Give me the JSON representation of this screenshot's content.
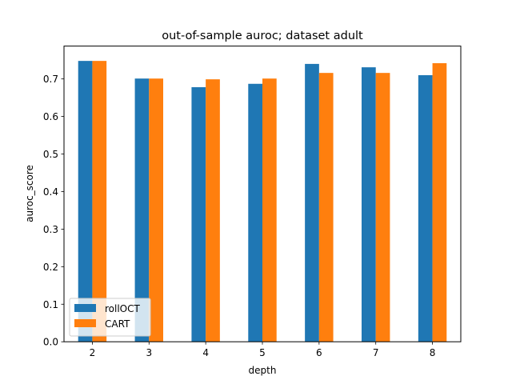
{
  "chart_data": {
    "type": "bar",
    "title": "out-of-sample auroc; dataset adult",
    "xlabel": "depth",
    "ylabel": "auroc_score",
    "categories": [
      "2",
      "3",
      "4",
      "5",
      "6",
      "7",
      "8"
    ],
    "series": [
      {
        "name": "rollOCT",
        "color": "#1f77b4",
        "values": [
          0.748,
          0.701,
          0.678,
          0.687,
          0.74,
          0.731,
          0.71
        ]
      },
      {
        "name": "CART",
        "color": "#ff7f0e",
        "values": [
          0.748,
          0.701,
          0.699,
          0.701,
          0.716,
          0.716,
          0.742
        ]
      }
    ],
    "ylim": [
      0,
      0.7875
    ],
    "yticks": [
      0.0,
      0.1,
      0.2,
      0.3,
      0.4,
      0.5,
      0.6,
      0.7
    ],
    "ytick_labels": [
      "0.0",
      "0.1",
      "0.2",
      "0.3",
      "0.4",
      "0.5",
      "0.6",
      "0.7"
    ],
    "grid": false,
    "legend_position": "lower left"
  }
}
